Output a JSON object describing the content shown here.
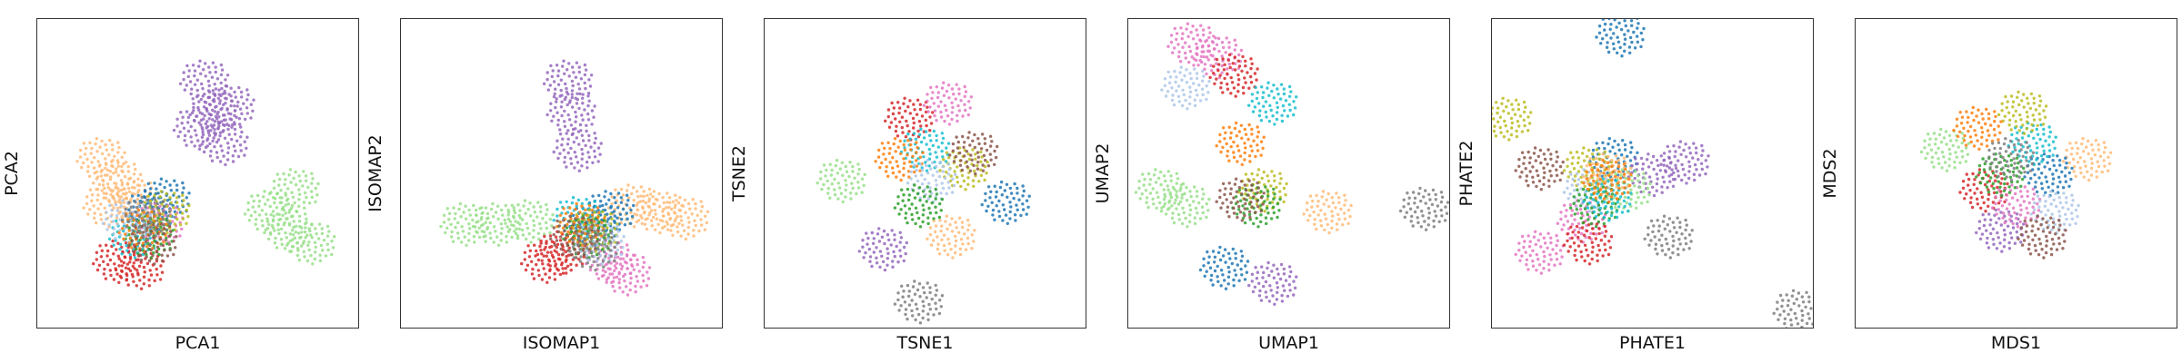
{
  "chart_data": [
    {
      "type": "scatter",
      "title": "",
      "xlabel": "PCA1",
      "ylabel": "PCA2",
      "ticks": "none",
      "grid": false,
      "legend": "none",
      "series": [
        {
          "color": "#9467bd",
          "points": [
            [
              0.55,
              0.3
            ],
            [
              0.52,
              0.2
            ],
            [
              0.58,
              0.4
            ],
            [
              0.5,
              0.35
            ],
            [
              0.6,
              0.28
            ]
          ]
        },
        {
          "color": "#ffbb78",
          "points": [
            [
              0.25,
              0.52
            ],
            [
              0.2,
              0.45
            ],
            [
              0.3,
              0.58
            ],
            [
              0.22,
              0.6
            ]
          ]
        },
        {
          "color": "#98df8a",
          "points": [
            [
              0.78,
              0.68
            ],
            [
              0.72,
              0.62
            ],
            [
              0.85,
              0.72
            ],
            [
              0.8,
              0.55
            ]
          ]
        },
        {
          "color": "#1f77b4",
          "points": [
            [
              0.35,
              0.62
            ],
            [
              0.4,
              0.58
            ]
          ]
        },
        {
          "color": "#d62728",
          "points": [
            [
              0.32,
              0.8
            ],
            [
              0.25,
              0.78
            ]
          ]
        },
        {
          "color": "#e377c2",
          "points": [
            [
              0.38,
              0.66
            ]
          ]
        },
        {
          "color": "#17becf",
          "points": [
            [
              0.3,
              0.7
            ]
          ]
        },
        {
          "color": "#bcbd22",
          "points": [
            [
              0.4,
              0.62
            ]
          ]
        },
        {
          "color": "#2ca02c",
          "points": [
            [
              0.35,
              0.7
            ]
          ]
        },
        {
          "color": "#aec7e8",
          "points": [
            [
              0.28,
              0.65
            ]
          ]
        },
        {
          "color": "#ff7f0e",
          "points": [
            [
              0.33,
              0.68
            ]
          ]
        },
        {
          "color": "#8c564b",
          "points": [
            [
              0.36,
              0.72
            ]
          ]
        },
        {
          "color": "#7f7f7f",
          "points": [
            [
              0.34,
              0.64
            ]
          ]
        }
      ]
    },
    {
      "type": "scatter",
      "title": "",
      "xlabel": "ISOMAP1",
      "ylabel": "ISOMAP2",
      "ticks": "none",
      "grid": false,
      "legend": "none",
      "series": [
        {
          "color": "#9467bd",
          "points": [
            [
              0.52,
              0.2
            ],
            [
              0.53,
              0.3
            ],
            [
              0.55,
              0.42
            ]
          ]
        },
        {
          "color": "#98df8a",
          "points": [
            [
              0.2,
              0.66
            ],
            [
              0.3,
              0.66
            ],
            [
              0.4,
              0.65
            ]
          ]
        },
        {
          "color": "#ffbb78",
          "points": [
            [
              0.8,
              0.62
            ],
            [
              0.72,
              0.6
            ],
            [
              0.88,
              0.64
            ]
          ]
        },
        {
          "color": "#e377c2",
          "points": [
            [
              0.7,
              0.82
            ],
            [
              0.65,
              0.78
            ]
          ]
        },
        {
          "color": "#1f77b4",
          "points": [
            [
              0.65,
              0.62
            ],
            [
              0.6,
              0.66
            ]
          ]
        },
        {
          "color": "#d62728",
          "points": [
            [
              0.5,
              0.75
            ],
            [
              0.45,
              0.78
            ]
          ]
        },
        {
          "color": "#17becf",
          "points": [
            [
              0.55,
              0.64
            ]
          ]
        },
        {
          "color": "#bcbd22",
          "points": [
            [
              0.6,
              0.68
            ]
          ]
        },
        {
          "color": "#2ca02c",
          "points": [
            [
              0.58,
              0.7
            ]
          ]
        },
        {
          "color": "#aec7e8",
          "points": [
            [
              0.62,
              0.72
            ]
          ]
        },
        {
          "color": "#ff7f0e",
          "points": [
            [
              0.56,
              0.66
            ]
          ]
        },
        {
          "color": "#8c564b",
          "points": [
            [
              0.54,
              0.7
            ]
          ]
        },
        {
          "color": "#7f7f7f",
          "points": [
            [
              0.6,
              0.74
            ]
          ]
        }
      ]
    },
    {
      "type": "scatter",
      "title": "",
      "xlabel": "TSNE1",
      "ylabel": "TSNE2",
      "ticks": "none",
      "grid": false,
      "legend": "none",
      "series": [
        {
          "color": "#98df8a",
          "points": [
            [
              0.24,
              0.52
            ]
          ]
        },
        {
          "color": "#9467bd",
          "points": [
            [
              0.37,
              0.74
            ]
          ]
        },
        {
          "color": "#ffbb78",
          "points": [
            [
              0.58,
              0.7
            ]
          ]
        },
        {
          "color": "#1f77b4",
          "points": [
            [
              0.75,
              0.59
            ]
          ]
        },
        {
          "color": "#d62728",
          "points": [
            [
              0.45,
              0.32
            ]
          ]
        },
        {
          "color": "#e377c2",
          "points": [
            [
              0.57,
              0.27
            ]
          ]
        },
        {
          "color": "#17becf",
          "points": [
            [
              0.5,
              0.42
            ]
          ]
        },
        {
          "color": "#bcbd22",
          "points": [
            [
              0.62,
              0.48
            ]
          ]
        },
        {
          "color": "#ff7f0e",
          "points": [
            [
              0.42,
              0.45
            ]
          ]
        },
        {
          "color": "#aec7e8",
          "points": [
            [
              0.52,
              0.52
            ]
          ]
        },
        {
          "color": "#2ca02c",
          "points": [
            [
              0.48,
              0.6
            ]
          ]
        },
        {
          "color": "#8c564b",
          "points": [
            [
              0.65,
              0.43
            ]
          ]
        },
        {
          "color": "#7f7f7f",
          "points": [
            [
              0.48,
              0.91
            ]
          ]
        }
      ]
    },
    {
      "type": "scatter",
      "title": "",
      "xlabel": "UMAP1",
      "ylabel": "UMAP2",
      "ticks": "none",
      "grid": false,
      "legend": "none",
      "series": [
        {
          "color": "#e377c2",
          "points": [
            [
              0.2,
              0.08
            ],
            [
              0.28,
              0.12
            ]
          ]
        },
        {
          "color": "#d62728",
          "points": [
            [
              0.33,
              0.18
            ]
          ]
        },
        {
          "color": "#17becf",
          "points": [
            [
              0.45,
              0.27
            ]
          ]
        },
        {
          "color": "#aec7e8",
          "points": [
            [
              0.18,
              0.22
            ]
          ]
        },
        {
          "color": "#ff7f0e",
          "points": [
            [
              0.35,
              0.4
            ]
          ]
        },
        {
          "color": "#bcbd22",
          "points": [
            [
              0.42,
              0.55
            ]
          ]
        },
        {
          "color": "#98df8a",
          "points": [
            [
              0.1,
              0.55
            ],
            [
              0.18,
              0.6
            ]
          ]
        },
        {
          "color": "#ffbb78",
          "points": [
            [
              0.62,
              0.62
            ]
          ]
        },
        {
          "color": "#1f77b4",
          "points": [
            [
              0.3,
              0.8
            ]
          ]
        },
        {
          "color": "#9467bd",
          "points": [
            [
              0.45,
              0.85
            ]
          ]
        },
        {
          "color": "#2ca02c",
          "points": [
            [
              0.4,
              0.6
            ]
          ]
        },
        {
          "color": "#7f7f7f",
          "points": [
            [
              0.92,
              0.61
            ]
          ]
        },
        {
          "color": "#8c564b",
          "points": [
            [
              0.35,
              0.58
            ]
          ]
        }
      ]
    },
    {
      "type": "scatter",
      "title": "",
      "xlabel": "PHATE1",
      "ylabel": "PHATE2",
      "ticks": "none",
      "grid": false,
      "legend": "none",
      "series": [
        {
          "color": "#1f77b4",
          "points": [
            [
              0.4,
              0.05
            ],
            [
              0.38,
              0.45
            ]
          ]
        },
        {
          "color": "#bcbd22",
          "points": [
            [
              0.05,
              0.32
            ],
            [
              0.3,
              0.48
            ]
          ]
        },
        {
          "color": "#9467bd",
          "points": [
            [
              0.6,
              0.46
            ],
            [
              0.5,
              0.5
            ]
          ]
        },
        {
          "color": "#7f7f7f",
          "points": [
            [
              0.55,
              0.7
            ],
            [
              0.95,
              0.94
            ]
          ]
        },
        {
          "color": "#e377c2",
          "points": [
            [
              0.15,
              0.75
            ],
            [
              0.28,
              0.65
            ]
          ]
        },
        {
          "color": "#d62728",
          "points": [
            [
              0.3,
              0.72
            ]
          ]
        },
        {
          "color": "#98df8a",
          "points": [
            [
              0.42,
              0.55
            ]
          ]
        },
        {
          "color": "#aec7e8",
          "points": [
            [
              0.3,
              0.55
            ]
          ]
        },
        {
          "color": "#ffbb78",
          "points": [
            [
              0.36,
              0.5
            ]
          ]
        },
        {
          "color": "#8c564b",
          "points": [
            [
              0.15,
              0.48
            ]
          ]
        },
        {
          "color": "#2ca02c",
          "points": [
            [
              0.32,
              0.6
            ]
          ]
        },
        {
          "color": "#17becf",
          "points": [
            [
              0.36,
              0.58
            ]
          ]
        },
        {
          "color": "#ff7f0e",
          "points": [
            [
              0.36,
              0.52
            ]
          ]
        }
      ]
    },
    {
      "type": "scatter",
      "title": "",
      "xlabel": "MDS1",
      "ylabel": "MDS2",
      "ticks": "none",
      "grid": false,
      "legend": "none",
      "series": [
        {
          "color": "#98df8a",
          "points": [
            [
              0.28,
              0.42
            ]
          ]
        },
        {
          "color": "#ffbb78",
          "points": [
            [
              0.72,
              0.45
            ]
          ]
        },
        {
          "color": "#9467bd",
          "points": [
            [
              0.45,
              0.68
            ]
          ]
        },
        {
          "color": "#1f77b4",
          "points": [
            [
              0.6,
              0.5
            ]
          ]
        },
        {
          "color": "#d62728",
          "points": [
            [
              0.4,
              0.55
            ]
          ]
        },
        {
          "color": "#e377c2",
          "points": [
            [
              0.5,
              0.6
            ]
          ]
        },
        {
          "color": "#17becf",
          "points": [
            [
              0.55,
              0.4
            ]
          ]
        },
        {
          "color": "#bcbd22",
          "points": [
            [
              0.52,
              0.3
            ]
          ]
        },
        {
          "color": "#2ca02c",
          "points": [
            [
              0.45,
              0.5
            ]
          ]
        },
        {
          "color": "#aec7e8",
          "points": [
            [
              0.62,
              0.62
            ]
          ]
        },
        {
          "color": "#ff7f0e",
          "points": [
            [
              0.38,
              0.35
            ]
          ]
        },
        {
          "color": "#8c564b",
          "points": [
            [
              0.58,
              0.7
            ]
          ]
        },
        {
          "color": "#7f7f7f",
          "points": [
            [
              0.48,
              0.45
            ]
          ]
        }
      ]
    }
  ]
}
